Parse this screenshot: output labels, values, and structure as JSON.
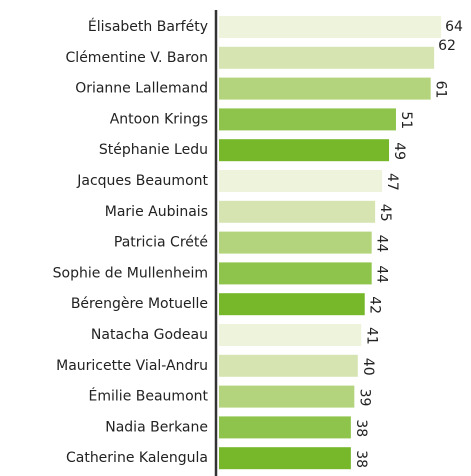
{
  "chart_data": {
    "type": "bar",
    "orientation": "horizontal",
    "categories": [
      "Élisabeth Barféty",
      "Clémentine V. Baron",
      "Orianne Lallemand",
      "Antoon Krings",
      "Stéphanie Ledu",
      "Jacques Beaumont",
      "Marie Aubinais",
      "Patricia Crété",
      "Sophie de Mullenheim",
      "Bérengère Motuelle",
      "Natacha Godeau",
      "Mauricette Vial-Andru",
      "Émilie Beaumont",
      "Nadia Berkane",
      "Catherine Kalengula"
    ],
    "values": [
      64,
      62,
      61,
      51,
      49,
      47,
      45,
      44,
      44,
      42,
      41,
      40,
      39,
      38,
      38
    ],
    "colors": [
      "#eef3dc",
      "#d6e4b2",
      "#b3d47c",
      "#8fc44c",
      "#76b82a"
    ]
  }
}
